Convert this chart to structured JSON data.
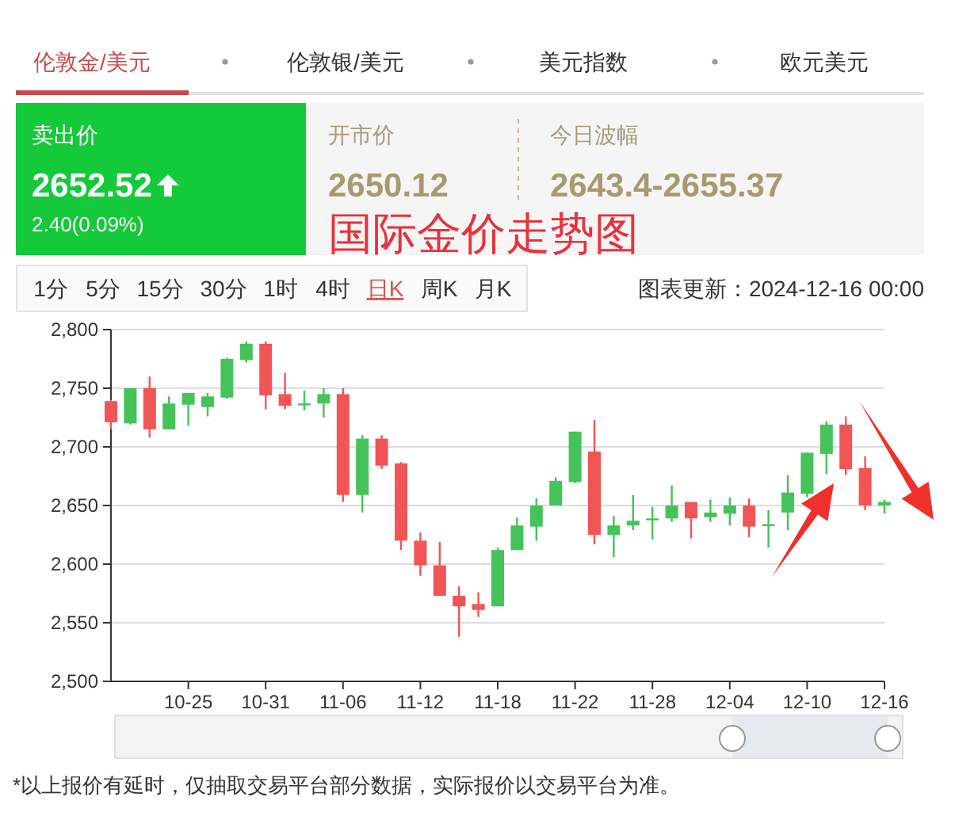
{
  "chart_data": [
    {
      "type": "other",
      "annotations": [
        "伦敦金/美元",
        "伦敦银/美元",
        "美元指数",
        "欧元美元",
        "卖出价",
        "2652.52",
        "2.40(0.09%)",
        "开市价",
        "2650.12",
        "今日波幅",
        "2643.4-2655.37",
        "国际金价走势图",
        "1分",
        "5分",
        "15分",
        "30分",
        "1时",
        "4时",
        "日K",
        "周K",
        "月K",
        "图表更新：2024-12-16 00:00"
      ]
    },
    {
      "type": "candlestick",
      "categories": [
        null,
        null,
        null,
        null,
        "10-25",
        null,
        null,
        null,
        "10-31",
        null,
        null,
        null,
        "11-06",
        null,
        null,
        null,
        "11-12",
        null,
        null,
        null,
        "11-18",
        null,
        null,
        null,
        "11-22",
        null,
        null,
        null,
        "11-28",
        null,
        null,
        null,
        "12-04",
        null,
        null,
        null,
        "12-10",
        null,
        null,
        null,
        "12-16"
      ],
      "ohlc": [
        [
          2739,
          2740,
          2715,
          2721
        ],
        [
          2720,
          2750,
          2719,
          2750
        ],
        [
          2750,
          2760,
          2708,
          2715
        ],
        [
          2715,
          2743,
          2715,
          2737
        ],
        [
          2736,
          2746,
          2718,
          2746
        ],
        [
          2734,
          2746,
          2726,
          2743
        ],
        [
          2742,
          2776,
          2741,
          2775
        ],
        [
          2774,
          2790,
          2772,
          2788
        ],
        [
          2788,
          2790,
          2732,
          2744
        ],
        [
          2745,
          2763,
          2732,
          2735
        ],
        [
          2736,
          2748,
          2731,
          2737
        ],
        [
          2737,
          2750,
          2725,
          2745
        ],
        [
          2745,
          2750,
          2653,
          2659
        ],
        [
          2659,
          2710,
          2644,
          2707
        ],
        [
          2707,
          2710,
          2681,
          2684
        ],
        [
          2686,
          2687,
          2612,
          2620
        ],
        [
          2620,
          2627,
          2590,
          2599
        ],
        [
          2599,
          2619,
          2573,
          2573
        ],
        [
          2573,
          2581,
          2538,
          2564
        ],
        [
          2566,
          2576,
          2555,
          2561
        ],
        [
          2564,
          2614,
          2564,
          2612
        ],
        [
          2612,
          2640,
          2612,
          2633
        ],
        [
          2632,
          2656,
          2620,
          2650
        ],
        [
          2650,
          2674,
          2650,
          2671
        ],
        [
          2670,
          2713,
          2669,
          2713
        ],
        [
          2696,
          2723,
          2617,
          2625
        ],
        [
          2625,
          2641,
          2606,
          2633
        ],
        [
          2633,
          2659,
          2629,
          2637
        ],
        [
          2638,
          2649,
          2621,
          2639
        ],
        [
          2639,
          2667,
          2636,
          2650
        ],
        [
          2653,
          2653,
          2622,
          2639
        ],
        [
          2640,
          2655,
          2636,
          2644
        ],
        [
          2643,
          2657,
          2633,
          2650
        ],
        [
          2650,
          2656,
          2623,
          2632
        ],
        [
          2633,
          2646,
          2614,
          2634
        ],
        [
          2644,
          2676,
          2629,
          2661
        ],
        [
          2660,
          2695,
          2657,
          2695
        ],
        [
          2694,
          2722,
          2677,
          2719
        ],
        [
          2719,
          2726,
          2676,
          2681
        ],
        [
          2682,
          2692,
          2646,
          2650
        ],
        [
          2650,
          2655,
          2643,
          2653
        ]
      ],
      "colors": [
        "#f25555",
        "#45c35a",
        "#f25555",
        "#45c35a",
        "#45c35a",
        "#45c35a",
        "#45c35a",
        "#45c35a",
        "#f25555",
        "#f25555",
        "#45c35a",
        "#45c35a",
        "#f25555",
        "#45c35a",
        "#f25555",
        "#f25555",
        "#f25555",
        "#f25555",
        "#f25555",
        "#f25555",
        "#45c35a",
        "#45c35a",
        "#45c35a",
        "#45c35a",
        "#45c35a",
        "#f25555",
        "#45c35a",
        "#45c35a",
        "#45c35a",
        "#45c35a",
        "#f25555",
        "#45c35a",
        "#45c35a",
        "#f25555",
        "#45c35a",
        "#45c35a",
        "#45c35a",
        "#45c35a",
        "#f25555",
        "#f25555",
        "#45c35a"
      ],
      "ylim": [
        2500,
        2800
      ],
      "yticks": [
        {
          "value": 2500,
          "label": "2,500"
        },
        {
          "value": 2550,
          "label": "2,550"
        },
        {
          "value": 2600,
          "label": "2,600"
        },
        {
          "value": 2650,
          "label": "2,650"
        },
        {
          "value": 2700,
          "label": "2,700"
        },
        {
          "value": 2750,
          "label": "2,750"
        },
        {
          "value": 2800,
          "label": "2,800"
        }
      ],
      "grid": "y",
      "annotations": [
        "*以上报价有延时，仅抽取交易平台部分数据，实际报价以交易平台为准。"
      ]
    }
  ]
}
